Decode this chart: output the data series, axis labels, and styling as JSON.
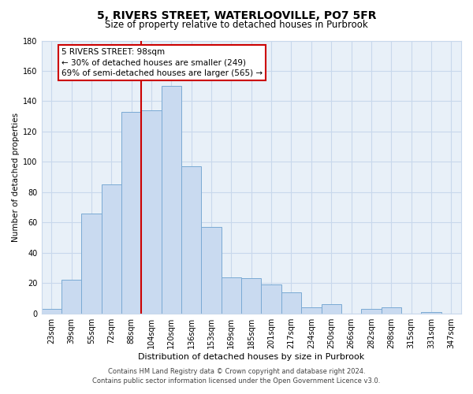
{
  "title": "5, RIVERS STREET, WATERLOOVILLE, PO7 5FR",
  "subtitle": "Size of property relative to detached houses in Purbrook",
  "xlabel": "Distribution of detached houses by size in Purbrook",
  "ylabel": "Number of detached properties",
  "bar_labels": [
    "23sqm",
    "39sqm",
    "55sqm",
    "72sqm",
    "88sqm",
    "104sqm",
    "120sqm",
    "136sqm",
    "153sqm",
    "169sqm",
    "185sqm",
    "201sqm",
    "217sqm",
    "234sqm",
    "250sqm",
    "266sqm",
    "282sqm",
    "298sqm",
    "315sqm",
    "331sqm",
    "347sqm"
  ],
  "bar_values": [
    3,
    22,
    66,
    85,
    133,
    134,
    150,
    97,
    57,
    24,
    23,
    19,
    14,
    4,
    6,
    0,
    3,
    4,
    0,
    1,
    0
  ],
  "bar_color": "#c9daf0",
  "bar_edge_color": "#7aaad4",
  "marker_x_label": "104sqm",
  "marker_line_color": "#cc0000",
  "annotation_title": "5 RIVERS STREET: 98sqm",
  "annotation_line1": "← 30% of detached houses are smaller (249)",
  "annotation_line2": "69% of semi-detached houses are larger (565) →",
  "annotation_box_color": "#ffffff",
  "annotation_box_edge": "#cc0000",
  "ylim": [
    0,
    180
  ],
  "yticks": [
    0,
    20,
    40,
    60,
    80,
    100,
    120,
    140,
    160,
    180
  ],
  "grid_color": "#c8d8ec",
  "bg_color": "#e8f0f8",
  "footer_line1": "Contains HM Land Registry data © Crown copyright and database right 2024.",
  "footer_line2": "Contains public sector information licensed under the Open Government Licence v3.0.",
  "title_fontsize": 10,
  "subtitle_fontsize": 8.5,
  "xlabel_fontsize": 8,
  "ylabel_fontsize": 7.5,
  "tick_fontsize": 7,
  "footer_fontsize": 6,
  "annotation_fontsize": 7.5
}
